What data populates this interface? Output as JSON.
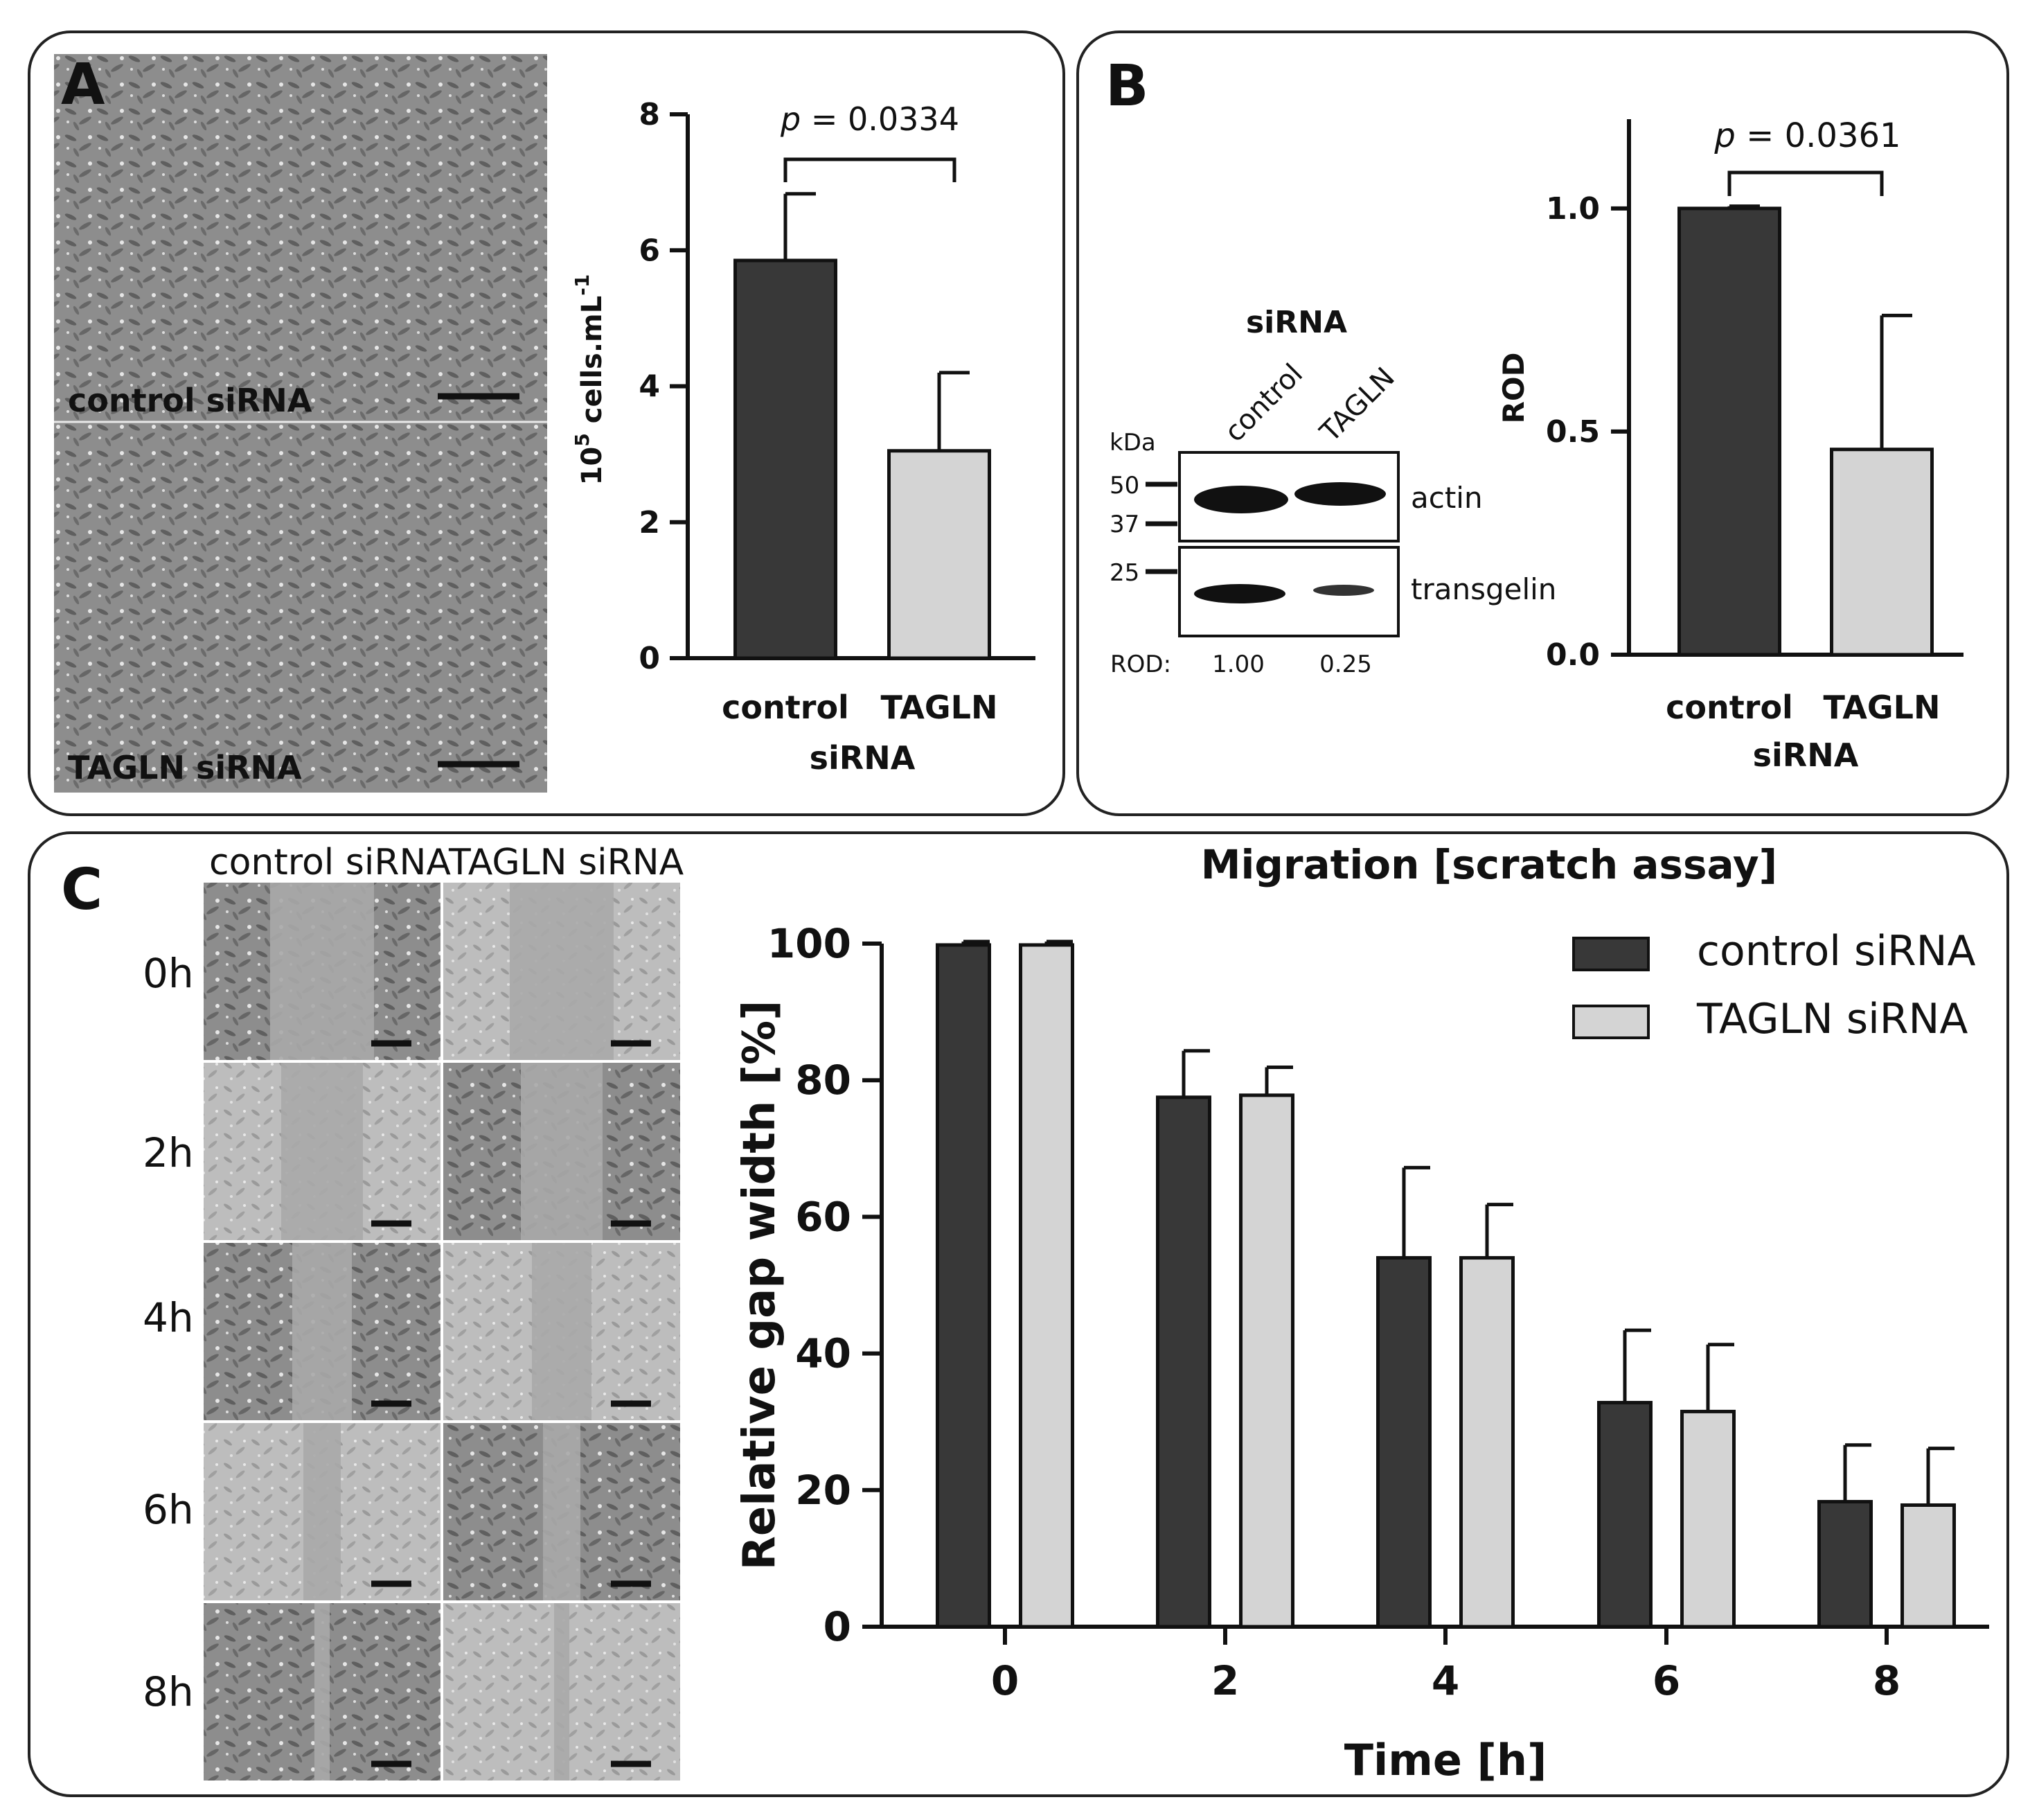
{
  "panels": {
    "A": {
      "letter": "A",
      "micro_labels": [
        "control siRNA",
        "TAGLN siRNA"
      ]
    },
    "B": {
      "letter": "B",
      "blot": {
        "header": "siRNA",
        "lanes": [
          "control",
          "TAGLN"
        ],
        "kda_label": "kDa",
        "markers": [
          "50",
          "37",
          "25"
        ],
        "bands": [
          "actin",
          "transgelin"
        ],
        "rod_label": "ROD:",
        "rod_values": [
          "1.00",
          "0.25"
        ]
      }
    },
    "C": {
      "letter": "C",
      "column_labels": [
        "control siRNA",
        "TAGLN siRNA"
      ],
      "row_labels": [
        "0h",
        "2h",
        "4h",
        "6h",
        "8h"
      ]
    }
  },
  "chart_data": [
    {
      "id": "A",
      "type": "bar",
      "categories": [
        "control",
        "TAGLN"
      ],
      "values": [
        5.85,
        3.05
      ],
      "errors": [
        0.98,
        1.15
      ],
      "colors": [
        "#383838",
        "#d4d4d4"
      ],
      "ylabel_base": "10",
      "ylabel_sup": "5",
      "ylabel_text": " cells.mL",
      "ylabel_sup2": "-1",
      "xlabel": "siRNA",
      "ylim": [
        0,
        8
      ],
      "yticks": [
        "0",
        "2",
        "4",
        "6",
        "8"
      ],
      "annotation_p": "p",
      "annotation_rest": " = 0.0334"
    },
    {
      "id": "B",
      "type": "bar",
      "categories": [
        "control",
        "TAGLN"
      ],
      "values": [
        1.0,
        0.46
      ],
      "errors": [
        0.005,
        0.3
      ],
      "colors": [
        "#383838",
        "#d4d4d4"
      ],
      "ylabel": "ROD",
      "xlabel": "siRNA",
      "ylim": [
        0,
        1.2
      ],
      "yticks": [
        "0.0",
        "0.5",
        "1.0"
      ],
      "annotation_p": "p",
      "annotation_rest": " = 0.0361"
    },
    {
      "id": "C",
      "type": "bar",
      "title": "Migration [scratch assay]",
      "categories": [
        "0",
        "2",
        "4",
        "6",
        "8"
      ],
      "series": [
        {
          "name": "control siRNA",
          "color": "#383838",
          "values": [
            99.8,
            77.5,
            54.0,
            32.8,
            18.3
          ],
          "errors": [
            0.5,
            6.8,
            13.2,
            10.6,
            8.3
          ]
        },
        {
          "name": "TAGLN siRNA",
          "color": "#d4d4d4",
          "values": [
            99.8,
            77.8,
            54.0,
            31.5,
            17.8
          ],
          "errors": [
            0.5,
            4.1,
            7.8,
            9.8,
            8.3
          ]
        }
      ],
      "xlabel": "Time [h]",
      "ylabel": "Relative gap width [%]",
      "ylim": [
        0,
        100
      ],
      "yticks": [
        "0",
        "20",
        "40",
        "60",
        "80",
        "100"
      ],
      "legend": "top-right"
    }
  ]
}
